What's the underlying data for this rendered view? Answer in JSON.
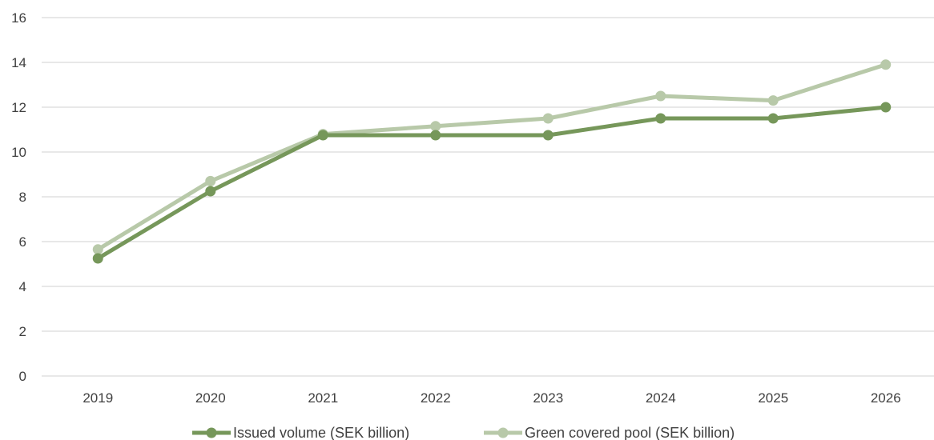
{
  "chart_data": {
    "type": "line",
    "x": [
      "2019",
      "2020",
      "2021",
      "2022",
      "2023",
      "2024",
      "2025",
      "2026"
    ],
    "ylim": [
      0,
      16
    ],
    "yticks": [
      "0",
      "2",
      "4",
      "6",
      "8",
      "10",
      "12",
      "14",
      "16"
    ],
    "grid": true,
    "legend_position": "bottom",
    "series": [
      {
        "name": "Issued volume (SEK billion)",
        "values": [
          5.25,
          8.25,
          10.75,
          10.75,
          10.75,
          11.5,
          11.5,
          12.0
        ],
        "color": "#76975a"
      },
      {
        "name": "Green covered pool (SEK billion)",
        "values": [
          5.65,
          8.7,
          10.8,
          11.15,
          11.5,
          12.5,
          12.3,
          13.9
        ],
        "color": "#b8c9a9"
      }
    ]
  }
}
